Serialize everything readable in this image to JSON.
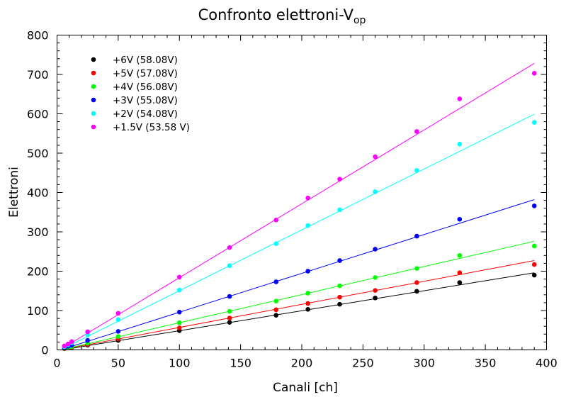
{
  "chart_data": {
    "type": "scatter",
    "title": "Confronto elettroni-V",
    "title_subscript": "op",
    "xlabel": "Canali [ch]",
    "ylabel": "Elettroni",
    "xlim": [
      0,
      400
    ],
    "ylim": [
      0,
      800
    ],
    "x_ticks": [
      "0",
      "50",
      "100",
      "150",
      "200",
      "250",
      "300",
      "350",
      "400"
    ],
    "y_ticks": [
      "0",
      "100",
      "200",
      "300",
      "400",
      "500",
      "600",
      "700",
      "800"
    ],
    "grid": false,
    "legend_position": "top-left",
    "has_fit_lines": true,
    "x": [
      6,
      9,
      12,
      25,
      50,
      100,
      141,
      179,
      205,
      231,
      260,
      294,
      329,
      390
    ],
    "series": [
      {
        "name": "+6V (58.08V)",
        "color": "#000000",
        "values": [
          3,
          5,
          6,
          12,
          24,
          49,
          70,
          88,
          103,
          116,
          132,
          149,
          171,
          190
        ],
        "fit": [
          [
            6,
            1
          ],
          [
            390,
            196
          ]
        ]
      },
      {
        "name": "+5V (57.08V)",
        "color": "#ff0000",
        "values": [
          3,
          5,
          7,
          14,
          28,
          56,
          81,
          102,
          118,
          134,
          151,
          171,
          196,
          217
        ],
        "fit": [
          [
            6,
            2
          ],
          [
            390,
            227
          ]
        ]
      },
      {
        "name": "+4V (56.08V)",
        "color": "#00ff00",
        "values": [
          4,
          6,
          8,
          17,
          34,
          69,
          98,
          124,
          144,
          163,
          184,
          207,
          240,
          264
        ],
        "fit": [
          [
            6,
            2
          ],
          [
            390,
            276
          ]
        ]
      },
      {
        "name": "+3V (55.08V)",
        "color": "#0000ff",
        "values": [
          5,
          9,
          12,
          24,
          47,
          96,
          136,
          173,
          200,
          227,
          256,
          289,
          332,
          366
        ],
        "fit": [
          [
            6,
            3
          ],
          [
            390,
            382
          ]
        ]
      },
      {
        "name": "+2V (54.08V)",
        "color": "#00ffff",
        "values": [
          8,
          13,
          18,
          38,
          77,
          152,
          214,
          270,
          316,
          356,
          402,
          456,
          523,
          578
        ],
        "fit": [
          [
            6,
            5
          ],
          [
            390,
            599
          ]
        ]
      },
      {
        "name": "+1.5V (53.58 V)",
        "color": "#ff00ff",
        "values": [
          10,
          15,
          21,
          46,
          93,
          185,
          260,
          330,
          386,
          434,
          491,
          555,
          638,
          703
        ],
        "fit": [
          [
            6,
            7
          ],
          [
            390,
            728
          ]
        ]
      }
    ]
  }
}
